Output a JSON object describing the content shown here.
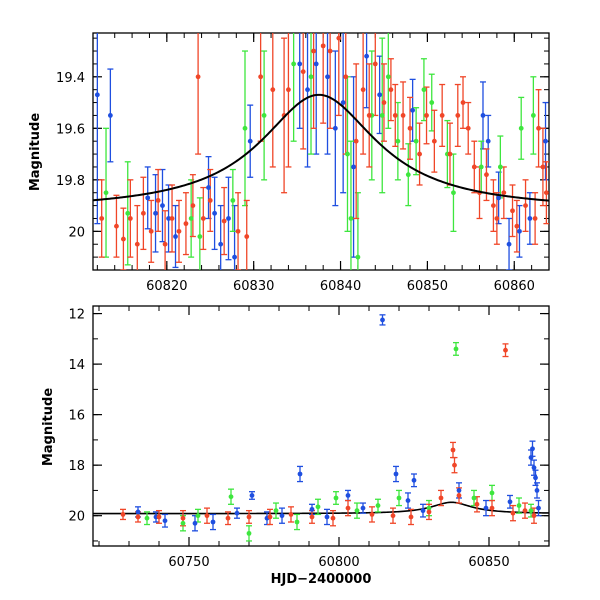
{
  "colors": {
    "blue": "#1f4fe0",
    "green": "#3ee63e",
    "red": "#f04628",
    "model": "#000000"
  },
  "chart_data": [
    {
      "type": "scatter",
      "panel": "top",
      "title": "",
      "xlabel": "",
      "ylabel": "Magnitude",
      "xlim": [
        60811.5,
        60864
      ],
      "ylim": [
        20.15,
        19.23
      ],
      "inverted_y": true,
      "xticks": [
        "60820",
        "60830",
        "60840",
        "60850",
        "60860"
      ],
      "yticks": [
        "19.4",
        "19.6",
        "19.8",
        "20"
      ],
      "model_curve": {
        "peak_x": 60837.5,
        "peak_mag": 19.47,
        "baseline_mag": 19.92,
        "width_days": 8.2
      },
      "series": [
        {
          "color": "blue",
          "points": [
            [
              60812.0,
              19.47,
              0.5
            ],
            [
              60813.5,
              19.55,
              0.18
            ],
            [
              60817.8,
              19.87,
              0.12
            ],
            [
              60818.7,
              19.93,
              0.15
            ],
            [
              60819.5,
              19.9,
              0.14
            ],
            [
              60820.2,
              19.95,
              0.13
            ],
            [
              60821.0,
              20.02,
              0.12
            ],
            [
              60824.8,
              19.83,
              0.12
            ],
            [
              60825.5,
              19.93,
              0.14
            ],
            [
              60826.2,
              20.05,
              0.15
            ],
            [
              60827.1,
              19.95,
              0.16
            ],
            [
              60827.8,
              20.1,
              0.2
            ],
            [
              60829.6,
              19.65,
              0.14
            ],
            [
              60835.3,
              19.35,
              0.25
            ],
            [
              60836.2,
              19.45,
              0.3
            ],
            [
              60837.2,
              19.35,
              0.35
            ],
            [
              60838.5,
              19.4,
              0.3
            ],
            [
              60839.4,
              19.6,
              0.3
            ],
            [
              60840.3,
              19.5,
              0.35
            ],
            [
              60841.5,
              19.75,
              0.35
            ],
            [
              60843.0,
              19.32,
              0.2
            ],
            [
              60844.5,
              19.47,
              0.15
            ],
            [
              60848.3,
              19.53,
              0.12
            ],
            [
              60856.4,
              19.55,
              0.13
            ],
            [
              60857.0,
              19.65,
              0.1
            ],
            [
              60858.2,
              19.87,
              0.1
            ],
            [
              60859.4,
              20.05,
              0.1
            ],
            [
              60860.6,
              20.0,
              0.1
            ],
            [
              60861.8,
              19.95,
              0.1
            ],
            [
              60863.6,
              19.65,
              0.15
            ]
          ]
        },
        {
          "color": "green",
          "points": [
            [
              60813.0,
              19.85,
              0.25
            ],
            [
              60815.5,
              19.93,
              0.2
            ],
            [
              60822.8,
              19.95,
              0.15
            ],
            [
              60823.8,
              20.02,
              0.15
            ],
            [
              60827.6,
              19.88,
              0.12
            ],
            [
              60829.0,
              19.6,
              0.3
            ],
            [
              60831.2,
              19.55,
              0.25
            ],
            [
              60834.6,
              19.35,
              0.3
            ],
            [
              60836.6,
              19.4,
              0.3
            ],
            [
              60840.8,
              19.7,
              0.3
            ],
            [
              60841.2,
              19.95,
              0.3
            ],
            [
              60842.0,
              20.1,
              0.25
            ],
            [
              60843.6,
              19.55,
              0.25
            ],
            [
              60844.8,
              19.55,
              0.3
            ],
            [
              60845.5,
              19.4,
              0.2
            ],
            [
              60846.6,
              19.65,
              0.15
            ],
            [
              60847.8,
              19.78,
              0.12
            ],
            [
              60848.7,
              19.65,
              0.13
            ],
            [
              60849.6,
              19.45,
              0.12
            ],
            [
              60850.5,
              19.5,
              0.11
            ],
            [
              60852.3,
              19.7,
              0.13
            ],
            [
              60853.0,
              19.85,
              0.15
            ],
            [
              60856.2,
              19.75,
              0.1
            ],
            [
              60858.4,
              19.75,
              0.12
            ],
            [
              60860.8,
              19.6,
              0.12
            ],
            [
              60862.2,
              19.55,
              0.15
            ]
          ]
        },
        {
          "color": "red",
          "points": [
            [
              60812.5,
              19.95,
              0.15
            ],
            [
              60814.2,
              19.98,
              0.12
            ],
            [
              60815.0,
              20.03,
              0.12
            ],
            [
              60815.8,
              19.95,
              0.15
            ],
            [
              60816.6,
              20.05,
              0.15
            ],
            [
              60817.3,
              19.93,
              0.14
            ],
            [
              60818.2,
              20.0,
              0.12
            ],
            [
              60819.0,
              19.88,
              0.12
            ],
            [
              60819.8,
              20.05,
              0.13
            ],
            [
              60820.6,
              19.95,
              0.13
            ],
            [
              60821.4,
              20.0,
              0.12
            ],
            [
              60822.2,
              19.97,
              0.12
            ],
            [
              60823.0,
              19.9,
              0.12
            ],
            [
              60823.6,
              19.4,
              0.3
            ],
            [
              60824.2,
              19.95,
              0.12
            ],
            [
              60825.0,
              19.88,
              0.12
            ],
            [
              60826.6,
              19.96,
              0.13
            ],
            [
              60828.2,
              20.0,
              0.15
            ],
            [
              60829.2,
              20.02,
              0.14
            ],
            [
              60830.8,
              19.4,
              0.25
            ],
            [
              60832.2,
              19.45,
              0.3
            ],
            [
              60833.5,
              19.55,
              0.3
            ],
            [
              60834.0,
              19.45,
              0.3
            ],
            [
              60835.7,
              19.38,
              0.3
            ],
            [
              60836.9,
              19.3,
              0.3
            ],
            [
              60838.0,
              19.28,
              0.3
            ],
            [
              60838.8,
              19.3,
              0.3
            ],
            [
              60839.8,
              19.25,
              0.3
            ],
            [
              60840.6,
              19.4,
              0.3
            ],
            [
              60841.8,
              19.65,
              0.3
            ],
            [
              60842.6,
              19.45,
              0.25
            ],
            [
              60843.3,
              19.55,
              0.2
            ],
            [
              60844.0,
              19.35,
              0.2
            ],
            [
              60845.0,
              19.5,
              0.15
            ],
            [
              60845.8,
              19.45,
              0.12
            ],
            [
              60846.3,
              19.55,
              0.12
            ],
            [
              60847.2,
              19.55,
              0.13
            ],
            [
              60848.0,
              19.6,
              0.12
            ],
            [
              60849.1,
              19.7,
              0.12
            ],
            [
              60849.9,
              19.55,
              0.11
            ],
            [
              60850.8,
              19.65,
              0.12
            ],
            [
              60851.7,
              19.55,
              0.12
            ],
            [
              60852.6,
              19.7,
              0.12
            ],
            [
              60853.5,
              19.55,
              0.12
            ],
            [
              60854.1,
              19.5,
              0.1
            ],
            [
              60854.7,
              19.6,
              0.1
            ],
            [
              60855.4,
              19.75,
              0.1
            ],
            [
              60856.0,
              19.85,
              0.1
            ],
            [
              60856.8,
              19.78,
              0.1
            ],
            [
              60857.6,
              19.9,
              0.1
            ],
            [
              60858.0,
              19.95,
              0.1
            ],
            [
              60858.8,
              19.85,
              0.1
            ],
            [
              60859.8,
              19.92,
              0.1
            ],
            [
              60860.3,
              19.98,
              0.1
            ],
            [
              60861.3,
              19.9,
              0.1
            ],
            [
              60862.4,
              19.95,
              0.1
            ],
            [
              60862.8,
              19.6,
              0.15
            ],
            [
              60863.3,
              19.75,
              0.15
            ],
            [
              60863.7,
              19.85,
              0.12
            ]
          ]
        }
      ]
    },
    {
      "type": "scatter",
      "panel": "bottom",
      "title": "",
      "xlabel": "HJD−2400000",
      "ylabel": "Magnitude",
      "xlim": [
        60718,
        60870
      ],
      "ylim": [
        21.2,
        11.7
      ],
      "inverted_y": true,
      "xticks": [
        "60750",
        "60800",
        "60850"
      ],
      "yticks": [
        "12",
        "14",
        "16",
        "18",
        "20"
      ],
      "series": [
        {
          "color": "blue",
          "points": [
            [
              60733,
              19.85,
              0.2
            ],
            [
              60739,
              20.05,
              0.2
            ],
            [
              60742,
              20.2,
              0.25
            ],
            [
              60752,
              20.3,
              0.3
            ],
            [
              60758,
              20.25,
              0.3
            ],
            [
              60766,
              19.9,
              0.2
            ],
            [
              60771,
              19.2,
              0.15
            ],
            [
              60776,
              20.1,
              0.25
            ],
            [
              60781,
              20.0,
              0.3
            ],
            [
              60787,
              18.35,
              0.3
            ],
            [
              60791,
              19.75,
              0.2
            ],
            [
              60796,
              20.05,
              0.3
            ],
            [
              60803,
              19.2,
              0.2
            ],
            [
              60808,
              19.7,
              0.2
            ],
            [
              60814.5,
              12.25,
              0.2
            ],
            [
              60819,
              18.35,
              0.3
            ],
            [
              60823,
              19.4,
              0.3
            ],
            [
              60825,
              18.6,
              0.25
            ],
            [
              60828,
              19.8,
              0.25
            ],
            [
              60840,
              19.0,
              0.3
            ],
            [
              60849,
              19.7,
              0.3
            ],
            [
              60857,
              19.45,
              0.25
            ],
            [
              60864,
              17.7,
              0.3
            ],
            [
              60864.5,
              17.35,
              0.3
            ],
            [
              60865,
              18.1,
              0.3
            ],
            [
              60865.5,
              18.5,
              0.3
            ],
            [
              60866,
              19.0,
              0.3
            ],
            [
              60866.5,
              19.7,
              0.3
            ]
          ]
        },
        {
          "color": "green",
          "points": [
            [
              60736,
              20.1,
              0.25
            ],
            [
              60748,
              20.3,
              0.3
            ],
            [
              60753,
              20.0,
              0.25
            ],
            [
              60764,
              19.25,
              0.3
            ],
            [
              60770,
              20.7,
              0.3
            ],
            [
              60779,
              19.8,
              0.3
            ],
            [
              60786,
              20.25,
              0.3
            ],
            [
              60793,
              19.65,
              0.3
            ],
            [
              60799,
              19.3,
              0.25
            ],
            [
              60806,
              19.8,
              0.3
            ],
            [
              60813,
              19.6,
              0.25
            ],
            [
              60820,
              19.3,
              0.3
            ],
            [
              60830,
              19.7,
              0.3
            ],
            [
              60839,
              13.4,
              0.25
            ],
            [
              60845,
              19.3,
              0.3
            ],
            [
              60851,
              19.1,
              0.3
            ],
            [
              60860,
              19.6,
              0.3
            ],
            [
              60864,
              19.8,
              0.25
            ]
          ]
        },
        {
          "color": "red",
          "points": [
            [
              60728,
              19.95,
              0.2
            ],
            [
              60733,
              20.05,
              0.2
            ],
            [
              60740,
              20.05,
              0.25
            ],
            [
              60748,
              20.1,
              0.3
            ],
            [
              60756,
              20.0,
              0.3
            ],
            [
              60763,
              20.1,
              0.25
            ],
            [
              60770,
              20.05,
              0.25
            ],
            [
              60777,
              20.05,
              0.3
            ],
            [
              60784,
              19.95,
              0.3
            ],
            [
              60791,
              20.05,
              0.25
            ],
            [
              60798,
              20.1,
              0.3
            ],
            [
              60803,
              19.7,
              0.3
            ],
            [
              60811,
              19.95,
              0.3
            ],
            [
              60818,
              20.0,
              0.3
            ],
            [
              60824,
              20.05,
              0.3
            ],
            [
              60830,
              19.85,
              0.3
            ],
            [
              60834,
              19.3,
              0.3
            ],
            [
              60838,
              17.4,
              0.3
            ],
            [
              60838.5,
              18.0,
              0.3
            ],
            [
              60840,
              19.2,
              0.3
            ],
            [
              60846,
              19.55,
              0.3
            ],
            [
              60851,
              19.7,
              0.3
            ],
            [
              60855.5,
              13.45,
              0.25
            ],
            [
              60858,
              19.9,
              0.3
            ],
            [
              60862,
              19.8,
              0.3
            ],
            [
              60865,
              20.0,
              0.3
            ]
          ]
        }
      ]
    }
  ]
}
